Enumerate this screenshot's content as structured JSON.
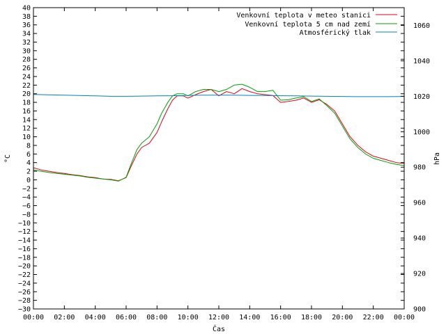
{
  "chart_data": {
    "type": "line",
    "xlabel": "Čas",
    "ylabel_left": "°C",
    "ylabel_right": "hPa",
    "x_ticks": [
      "00:00",
      "02:00",
      "04:00",
      "06:00",
      "08:00",
      "10:00",
      "12:00",
      "14:00",
      "16:00",
      "18:00",
      "20:00",
      "22:00",
      "00:00"
    ],
    "xlim_hours": [
      0,
      24
    ],
    "ylim_left": [
      -30,
      40
    ],
    "ylim_right": [
      900,
      1070
    ],
    "y_ticks_left": [
      40,
      38,
      36,
      34,
      32,
      30,
      28,
      26,
      24,
      22,
      20,
      18,
      16,
      14,
      12,
      10,
      8,
      6,
      4,
      2,
      0,
      -2,
      -4,
      -6,
      -8,
      -10,
      -12,
      -14,
      -16,
      -18,
      -20,
      -22,
      -24,
      -26,
      -28,
      -30
    ],
    "y_ticks_right": [
      1060,
      1040,
      1020,
      1000,
      980,
      960,
      940,
      920,
      900
    ],
    "grid": false,
    "legend_position": "top-right",
    "series": [
      {
        "name": "Venkovní teplota v meteo stanici",
        "axis": "left",
        "color": "#e0001b",
        "x": [
          0,
          0.5,
          1,
          1.5,
          2,
          2.5,
          3,
          3.5,
          4,
          4.5,
          5,
          5.5,
          6,
          6.3,
          6.7,
          7,
          7.5,
          8,
          8.3,
          8.7,
          9,
          9.3,
          9.7,
          10,
          10.5,
          11,
          11.5,
          12,
          12.5,
          13,
          13.5,
          14,
          14.5,
          15,
          15.5,
          16,
          16.5,
          17,
          17.5,
          18,
          18.5,
          19,
          19.5,
          20,
          20.5,
          21,
          21.5,
          22,
          22.5,
          23,
          23.5,
          24
        ],
        "y": [
          2.8,
          2.3,
          2.0,
          1.7,
          1.5,
          1.2,
          1.0,
          0.7,
          0.5,
          0.2,
          0.1,
          -0.2,
          0.5,
          3.0,
          6.0,
          7.5,
          8.5,
          11.0,
          13.5,
          16.5,
          18.5,
          19.5,
          19.5,
          19.0,
          19.8,
          20.5,
          21.0,
          19.5,
          20.5,
          20.0,
          21.2,
          20.5,
          20.0,
          19.8,
          19.6,
          18.0,
          18.2,
          18.5,
          19.0,
          18.0,
          18.6,
          17.5,
          16.0,
          13.0,
          10.0,
          8.0,
          6.5,
          5.5,
          5.0,
          4.5,
          4.0,
          3.8
        ]
      },
      {
        "name": "Venkovní teplota 5 cm nad zemí",
        "axis": "left",
        "color": "#00a000",
        "x": [
          0,
          0.5,
          1,
          1.5,
          2,
          2.5,
          3,
          3.5,
          4,
          4.5,
          5,
          5.5,
          6,
          6.3,
          6.7,
          7,
          7.5,
          8,
          8.3,
          8.7,
          9,
          9.3,
          9.7,
          10,
          10.5,
          11,
          11.5,
          12,
          12.5,
          13,
          13.5,
          14,
          14.5,
          15,
          15.5,
          16,
          16.5,
          17,
          17.5,
          18,
          18.5,
          19,
          19.5,
          20,
          20.5,
          21,
          21.5,
          22,
          22.5,
          23,
          23.5,
          24
        ],
        "y": [
          2.3,
          2.0,
          1.7,
          1.5,
          1.3,
          1.1,
          0.9,
          0.6,
          0.4,
          0.2,
          0.0,
          -0.3,
          0.6,
          3.5,
          7.0,
          8.5,
          10.0,
          13.0,
          15.5,
          18.0,
          19.5,
          20.0,
          20.0,
          19.5,
          20.5,
          21.0,
          21.0,
          20.5,
          21.0,
          22.0,
          22.2,
          21.5,
          20.5,
          20.5,
          20.8,
          18.5,
          18.6,
          19.0,
          19.3,
          18.2,
          18.8,
          17.2,
          15.5,
          12.5,
          9.5,
          7.5,
          6.0,
          5.0,
          4.5,
          4.0,
          3.6,
          3.3
        ]
      },
      {
        "name": "Atmosférický tlak",
        "axis": "right",
        "color": "#0080c0",
        "x": [
          0,
          1,
          2,
          3,
          4,
          5,
          6,
          7,
          8,
          9,
          10,
          11,
          12,
          13,
          14,
          15,
          16,
          17,
          18,
          19,
          20,
          21,
          22,
          23,
          24
        ],
        "y": [
          1021.0,
          1020.8,
          1020.6,
          1020.4,
          1020.2,
          1020.0,
          1020.0,
          1020.1,
          1020.2,
          1020.3,
          1020.5,
          1020.6,
          1020.6,
          1020.6,
          1020.5,
          1020.4,
          1020.3,
          1020.2,
          1020.1,
          1020.0,
          1019.9,
          1019.8,
          1019.8,
          1019.8,
          1019.9
        ]
      }
    ]
  }
}
